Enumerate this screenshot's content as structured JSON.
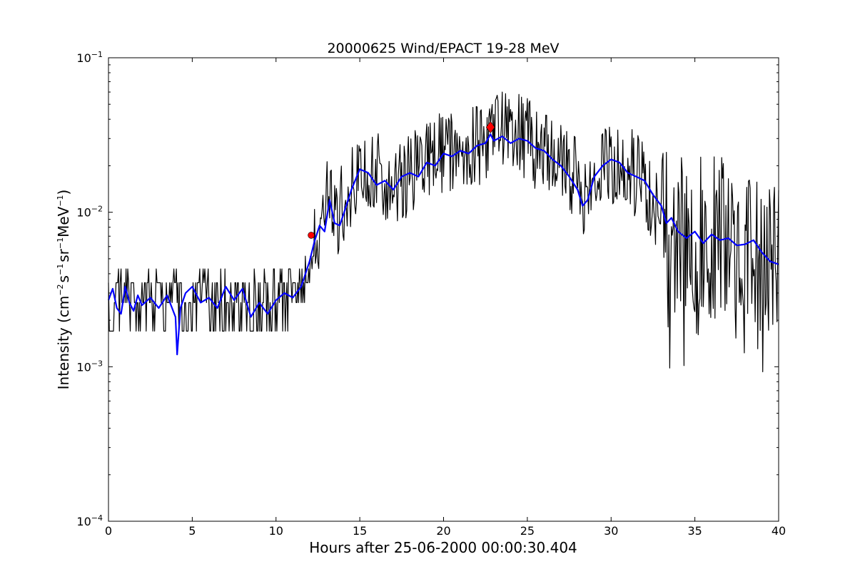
{
  "chart_data": {
    "type": "line",
    "title": "20000625 Wind/EPACT 19-28 MeV",
    "xlabel": "Hours after 25-06-2000 00:00:30.404",
    "ylabel": {
      "prefix": "Intensity (cm",
      "exp1": "−2",
      "s": "s",
      "exp2": "−1",
      "sr": "sr",
      "exp3": "−1",
      "mev": "MeV",
      "exp4": "−1",
      "suffix": ")"
    },
    "xlim": [
      0,
      40
    ],
    "ylim": [
      0.0001,
      0.1
    ],
    "yscale": "log",
    "grid": false,
    "xticks": [
      {
        "value": 0,
        "label": "0"
      },
      {
        "value": 5,
        "label": "5"
      },
      {
        "value": 10,
        "label": "10"
      },
      {
        "value": 15,
        "label": "15"
      },
      {
        "value": 20,
        "label": "20"
      },
      {
        "value": 25,
        "label": "25"
      },
      {
        "value": 30,
        "label": "30"
      },
      {
        "value": 35,
        "label": "35"
      },
      {
        "value": 40,
        "label": "40"
      }
    ],
    "yticks": [
      {
        "value": 0.0001,
        "base": "10",
        "exp": "−4"
      },
      {
        "value": 0.001,
        "base": "10",
        "exp": "−3"
      },
      {
        "value": 0.01,
        "base": "10",
        "exp": "−2"
      },
      {
        "value": 0.1,
        "base": "10",
        "exp": "−1"
      }
    ],
    "series": [
      {
        "style": "raw",
        "color": "#000000",
        "sampling_interval_hours": 0.05,
        "profile_hours": [
          0,
          4,
          9,
          11,
          12,
          12.5,
          13,
          13.6,
          15,
          16,
          17,
          17.6,
          19,
          20,
          21,
          22,
          22.8,
          24,
          25,
          26,
          27,
          28,
          28.5,
          29,
          30,
          31,
          32,
          33,
          34,
          36,
          38,
          40
        ],
        "profile_values": [
          0.0027,
          0.0027,
          0.0027,
          0.003,
          0.0045,
          0.007,
          0.012,
          0.009,
          0.019,
          0.018,
          0.016,
          0.017,
          0.021,
          0.024,
          0.026,
          0.028,
          0.032,
          0.032,
          0.029,
          0.025,
          0.021,
          0.016,
          0.011,
          0.016,
          0.021,
          0.02,
          0.015,
          0.01,
          0.0075,
          0.0068,
          0.0062,
          0.0045
        ]
      },
      {
        "style": "smoothed",
        "color": "#0000ff",
        "hours": [
          0,
          0.25,
          0.5,
          0.75,
          1,
          1.25,
          1.5,
          1.75,
          2,
          2.5,
          3,
          3.5,
          4,
          4.1,
          4.3,
          4.6,
          5,
          5.5,
          6,
          6.5,
          7,
          7.5,
          8,
          8.5,
          9,
          9.5,
          10,
          10.5,
          11,
          11.5,
          12,
          12.3,
          12.6,
          12.9,
          13.2,
          13.5,
          13.8,
          14,
          14.5,
          15,
          15.5,
          16,
          16.5,
          17,
          17.5,
          18,
          18.5,
          19,
          19.5,
          20,
          20.5,
          21,
          21.5,
          22,
          22.5,
          22.8,
          23,
          23.5,
          24,
          24.5,
          25,
          25.5,
          26,
          26.5,
          27,
          27.5,
          28,
          28.3,
          28.6,
          29,
          29.5,
          30,
          30.5,
          31,
          31.5,
          32,
          32.5,
          33,
          33.3,
          33.6,
          34,
          34.5,
          35,
          35.5,
          36,
          36.5,
          37,
          37.5,
          38,
          38.5,
          39,
          39.5,
          40
        ],
        "values": [
          0.0027,
          0.0032,
          0.0024,
          0.0022,
          0.0033,
          0.0026,
          0.0023,
          0.0029,
          0.0025,
          0.0028,
          0.0024,
          0.0029,
          0.0021,
          0.0012,
          0.0024,
          0.003,
          0.0033,
          0.0026,
          0.0028,
          0.0024,
          0.0033,
          0.0027,
          0.0032,
          0.0021,
          0.0026,
          0.0022,
          0.0027,
          0.003,
          0.0028,
          0.0033,
          0.0048,
          0.0065,
          0.0082,
          0.0075,
          0.012,
          0.0085,
          0.0082,
          0.0095,
          0.014,
          0.019,
          0.018,
          0.015,
          0.016,
          0.014,
          0.017,
          0.018,
          0.017,
          0.021,
          0.02,
          0.024,
          0.023,
          0.025,
          0.024,
          0.027,
          0.028,
          0.032,
          0.029,
          0.031,
          0.028,
          0.03,
          0.029,
          0.026,
          0.025,
          0.022,
          0.02,
          0.017,
          0.014,
          0.011,
          0.012,
          0.017,
          0.02,
          0.022,
          0.021,
          0.018,
          0.017,
          0.016,
          0.013,
          0.011,
          0.0085,
          0.0092,
          0.0075,
          0.0068,
          0.0075,
          0.0063,
          0.0072,
          0.0066,
          0.0068,
          0.0061,
          0.0062,
          0.0066,
          0.0055,
          0.0048,
          0.0046
        ]
      }
    ],
    "markers": [
      {
        "x": 12.1,
        "y": 0.0071,
        "color": "#ff0000",
        "shape": "circle"
      },
      {
        "x": 22.8,
        "y": 0.0355,
        "color": "#ff0000",
        "shape": "diamond"
      }
    ]
  }
}
